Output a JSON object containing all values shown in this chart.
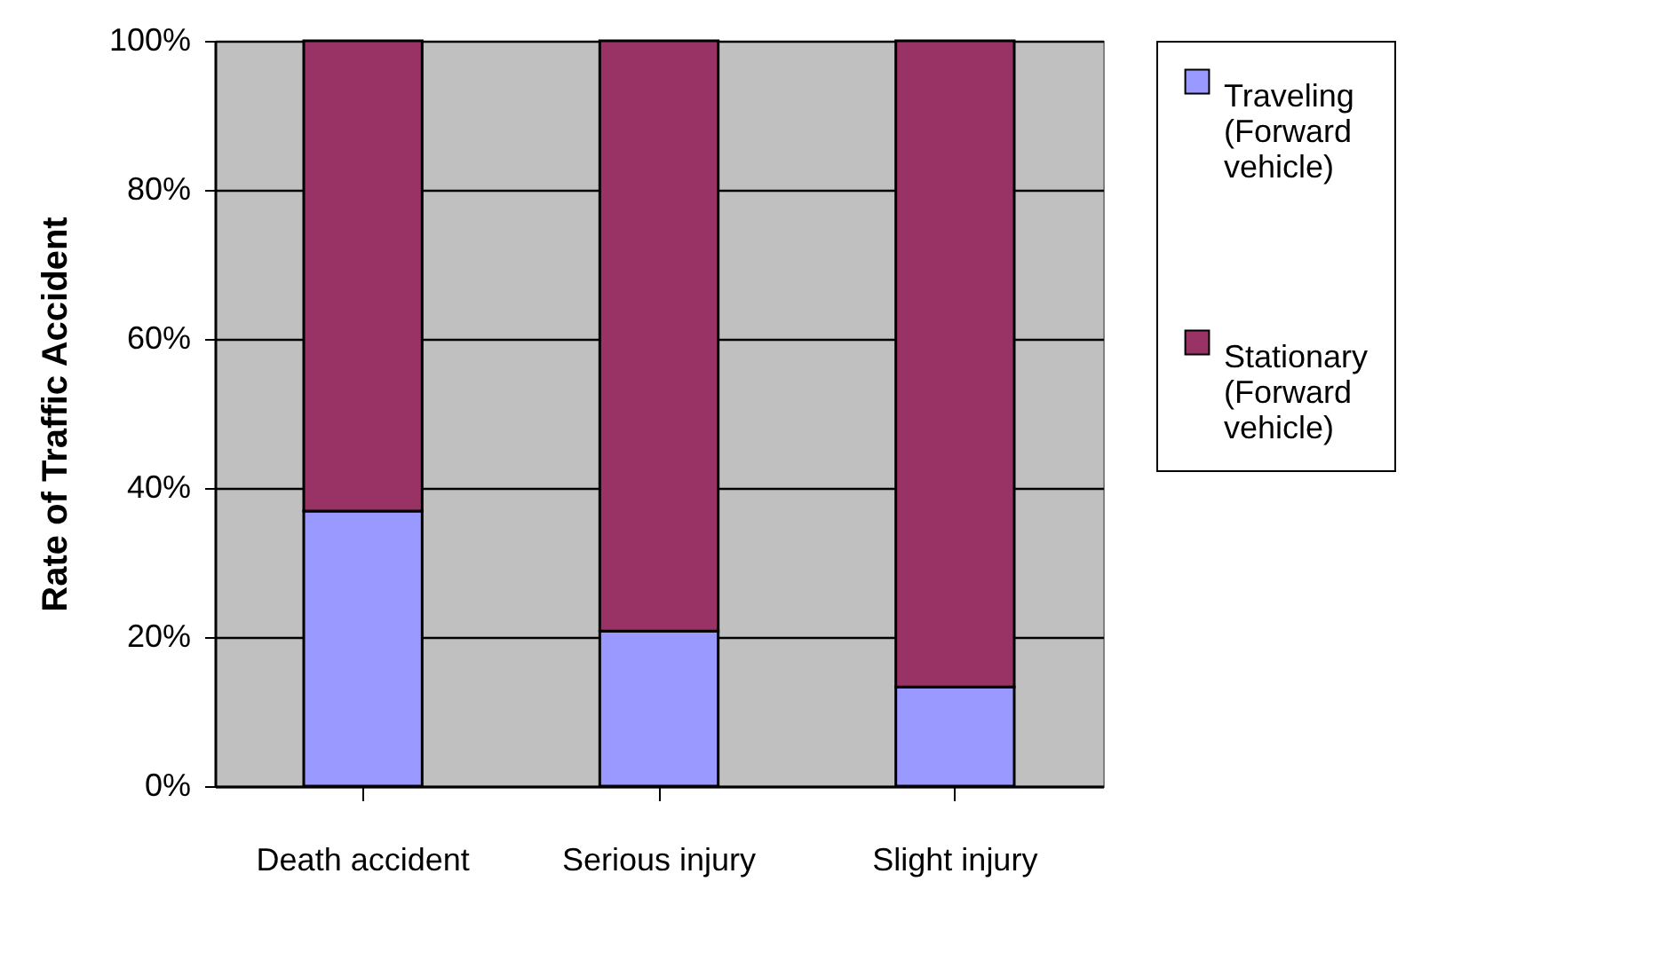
{
  "chart_data": {
    "type": "bar",
    "stacked": true,
    "ylabel": "Rate of Traffic Accident",
    "categories": [
      "Death accident",
      "Serious injury",
      "Slight injury"
    ],
    "series": [
      {
        "name": "Traveling (Forward vehicle)",
        "color": "#9999ff",
        "values": [
          36.9,
          20.8,
          13.3
        ]
      },
      {
        "name": "Stationary (Forward vehicle)",
        "color": "#993366",
        "values": [
          63.1,
          79.2,
          86.7
        ]
      }
    ],
    "ylim": [
      0,
      100
    ],
    "yticks": [
      {
        "value": 0,
        "label": "0%"
      },
      {
        "value": 20,
        "label": "20%"
      },
      {
        "value": 40,
        "label": "40%"
      },
      {
        "value": 60,
        "label": "60%"
      },
      {
        "value": 80,
        "label": "80%"
      },
      {
        "value": 100,
        "label": "100%"
      }
    ],
    "grid": "y",
    "legend": "right"
  }
}
